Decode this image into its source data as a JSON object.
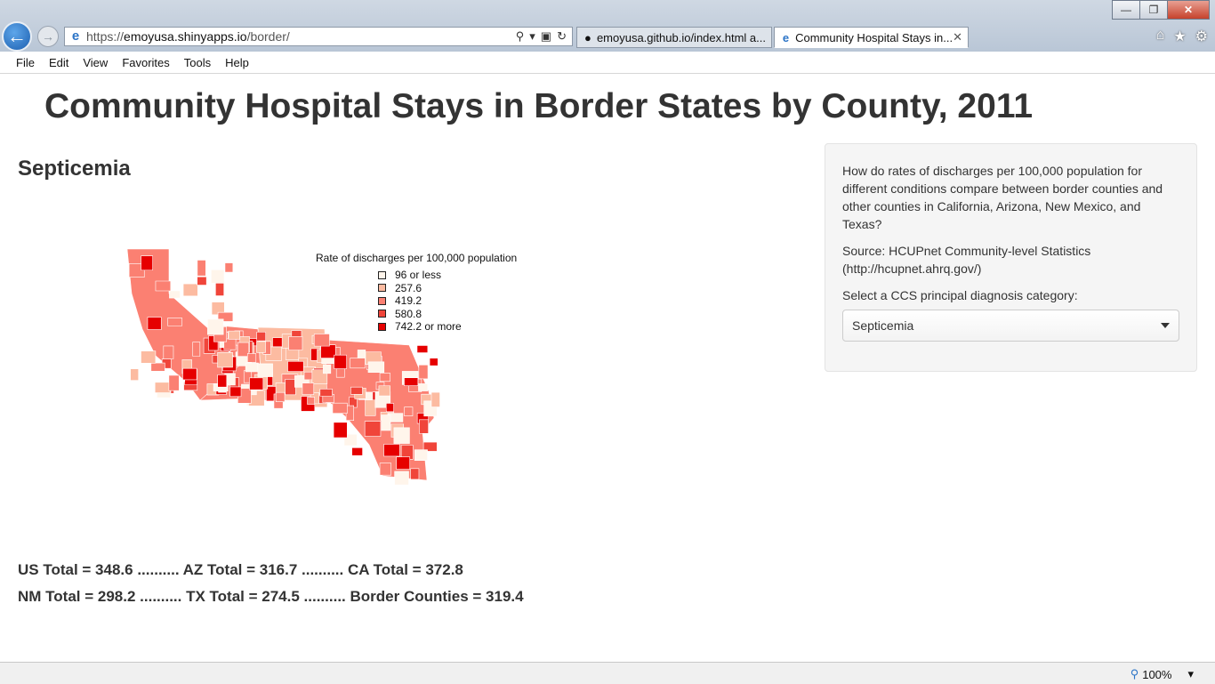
{
  "browser": {
    "url_prefix": "https://",
    "url_host": "emoyusa.shinyapps.io",
    "url_path": "/border/",
    "tabs": [
      {
        "label": "emoyusa.github.io/index.html a..."
      },
      {
        "label": "Community Hospital Stays in..."
      }
    ],
    "menu": [
      "File",
      "Edit",
      "View",
      "Favorites",
      "Tools",
      "Help"
    ],
    "zoom": "100%"
  },
  "page": {
    "title": "Community Hospital Stays in Border States by County, 2011",
    "condition": "Septicemia"
  },
  "legend": {
    "title": "Rate of discharges per 100,000 population",
    "items": [
      {
        "label": "96 or less",
        "color": "#fff5eb"
      },
      {
        "label": "257.6",
        "color": "#fcbba1"
      },
      {
        "label": "419.2",
        "color": "#fb8072"
      },
      {
        "label": "580.8",
        "color": "#f0453a"
      },
      {
        "label": "742.2 or more",
        "color": "#e60000"
      }
    ]
  },
  "totals": {
    "line1": "US Total = 348.6 .......... AZ Total = 316.7 .......... CA Total = 372.8",
    "line2": "NM Total = 298.2 .......... TX Total = 274.5 .......... Border Counties = 319.4"
  },
  "sidebar": {
    "question": "How do rates of discharges per 100,000 population for different conditions compare between border counties and other counties in California, Arizona, New Mexico, and Texas?",
    "source": "Source: HCUPnet Community-level Statistics (http://hcupnet.ahrq.gov/)",
    "select_label": "Select a CCS principal diagnosis category:",
    "select_value": "Septicemia"
  }
}
